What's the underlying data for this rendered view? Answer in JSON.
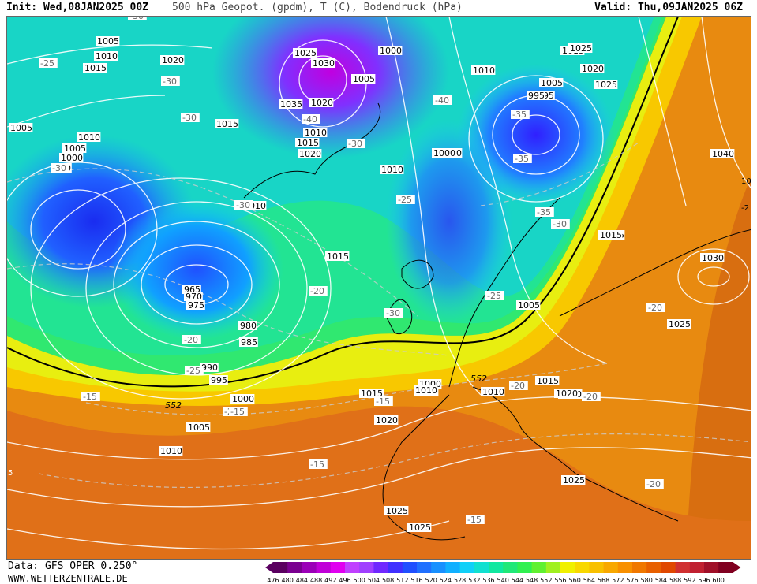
{
  "header": {
    "init": "Init: Wed,08JAN2025 00Z",
    "title": "500 hPa Geopot. (gpdm), T (C), Bodendruck (hPa)",
    "valid": "Valid: Thu,09JAN2025 06Z"
  },
  "footer": {
    "data_source": "Data: GFS OPER 0.250°",
    "website": "WWW.WETTERZENTRALE.DE"
  },
  "legend": {
    "values": [
      "476",
      "480",
      "484",
      "488",
      "492",
      "496",
      "500",
      "504",
      "508",
      "512",
      "516",
      "520",
      "524",
      "528",
      "532",
      "536",
      "540",
      "544",
      "548",
      "552",
      "556",
      "560",
      "564",
      "568",
      "572",
      "576",
      "580",
      "584",
      "588",
      "592",
      "596",
      "600"
    ],
    "colors": [
      "#5a0060",
      "#7a0090",
      "#9b00b8",
      "#c000d8",
      "#e000f0",
      "#c040ff",
      "#a040ff",
      "#7028ff",
      "#4030ff",
      "#2050ff",
      "#2070ff",
      "#1890ff",
      "#10b0ff",
      "#10d0f8",
      "#10e0d0",
      "#10e8a0",
      "#20e878",
      "#30f050",
      "#60f030",
      "#a0f020",
      "#f0f000",
      "#f8d800",
      "#f8c000",
      "#f8a800",
      "#f89000",
      "#f07800",
      "#e86000",
      "#e04800",
      "#d03030",
      "#c02030",
      "#a01028",
      "#800020"
    ]
  },
  "isobars": [
    "1005",
    "1010",
    "1015",
    "1020",
    "1025",
    "1030",
    "1000",
    "1005",
    "1010",
    "1015",
    "1020",
    "1025",
    "1035",
    "1020",
    "1010",
    "1015",
    "1020",
    "1005",
    "1010",
    "1015",
    "1000",
    "1005",
    "1000",
    "995",
    "1010",
    "1005",
    "1000",
    "995",
    "990",
    "1010",
    "1015",
    "1010",
    "1015",
    "965",
    "970",
    "975",
    "980",
    "985",
    "990",
    "995",
    "1000",
    "1005",
    "1010",
    "1015",
    "1020",
    "1010",
    "1000",
    "1005",
    "1010",
    "1015",
    "1020",
    "1025",
    "1025",
    "1025",
    "1025",
    "1040",
    "1030",
    "1025",
    "1020",
    "1015",
    "1010",
    "1015",
    "1020"
  ],
  "temps": [
    "-30",
    "-25",
    "-30",
    "-30",
    "-40",
    "-30",
    "-35",
    "-40",
    "-30",
    "-35",
    "-30",
    "-25",
    "-35",
    "-20",
    "-30",
    "-30",
    "-25",
    "-15",
    "-20",
    "-15",
    "-15",
    "-20",
    "-20",
    "-15",
    "-20",
    "-25",
    "-20",
    "-20",
    "-15"
  ],
  "contour_552": "552",
  "edge_marks": [
    "5",
    "10",
    "-2"
  ]
}
